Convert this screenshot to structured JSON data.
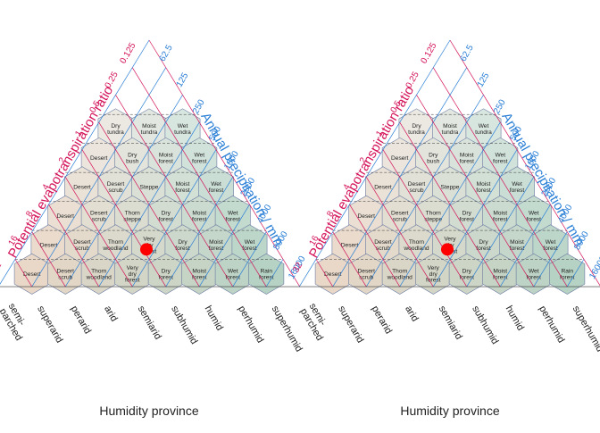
{
  "colors": {
    "pet_axis": "#d4145a",
    "precip_axis": "#2a7fd6",
    "cell_border": "#6a7aa0",
    "text": "#222222",
    "marker": "#ff0000",
    "cell_warm": "#e9d8c8",
    "cell_cool": "#eef4f3",
    "cell_wet": "#b6d2c4"
  },
  "panels": [
    {
      "pet_axis_title": "Potential evapotranspiration ratio",
      "precip_axis_title": "Annual precipitation / mm",
      "humidity_axis_title": "Humidity province",
      "pet_ticks": [
        "0.125",
        "0.25",
        "0.5",
        "1",
        "2",
        "4",
        "8",
        "16",
        "32"
      ],
      "precip_ticks": [
        "62.5",
        "125",
        "250",
        "500",
        "1000",
        "2000",
        "4000",
        "8000",
        "16000"
      ],
      "humidity_ticks": [
        "semi-\nparched",
        "superarid",
        "perarid",
        "arid",
        "semiarid",
        "subhumid",
        "humid",
        "perhumid",
        "superhumid"
      ],
      "marker_visible": true,
      "rows": [
        [
          {
            "label": "Dry\ntundra"
          },
          {
            "label": "Moist\ntundra"
          },
          {
            "label": "Wet\ntundra"
          }
        ],
        [
          {
            "label": "Desert"
          },
          {
            "label": "Dry\nbush"
          },
          {
            "label": "Moist\nforest"
          },
          {
            "label": "Wet\nforest"
          }
        ],
        [
          {
            "label": "Desert"
          },
          {
            "label": "Desert\nscrub"
          },
          {
            "label": "Steppe"
          },
          {
            "label": "Moist\nforest"
          },
          {
            "label": "Wet\nforest"
          }
        ],
        [
          {
            "label": "Desert"
          },
          {
            "label": "Desert\nscrub"
          },
          {
            "label": "Thorn\nsteppe"
          },
          {
            "label": "Dry\nforest"
          },
          {
            "label": "Moist\nforest"
          },
          {
            "label": "Wet\nforest"
          }
        ],
        [
          {
            "label": "Desert"
          },
          {
            "label": "Desert\nscrub"
          },
          {
            "label": "Thorn\nwoodland"
          },
          {
            "label": "Very\ndry\nforest"
          },
          {
            "label": "Dry\nforest"
          },
          {
            "label": "Moist\nforest"
          },
          {
            "label": "Wet\nforest"
          }
        ],
        [
          {
            "label": "Desert"
          },
          {
            "label": "Desert\nscrub"
          },
          {
            "label": "Thorn\nwoodland"
          },
          {
            "label": "Very\ndry\nforest"
          },
          {
            "label": "Dry\nforest"
          },
          {
            "label": "Moist\nforest"
          },
          {
            "label": "Wet\nforest"
          },
          {
            "label": "Rain\nforest"
          }
        ]
      ]
    },
    {
      "pet_axis_title": "Potential evapotranspiration ratio",
      "precip_axis_title": "Annual precipitation / mm",
      "humidity_axis_title": "Humidity province",
      "pet_ticks": [
        "0.125",
        "0.25",
        "0.5",
        "1",
        "2",
        "4",
        "8",
        "16",
        "32"
      ],
      "precip_ticks": [
        "62.5",
        "125",
        "250",
        "500",
        "1000",
        "2000",
        "4000",
        "8000",
        "16000"
      ],
      "humidity_ticks": [
        "semi-\nparched",
        "superarid",
        "perarid",
        "arid",
        "semiarid",
        "subhumid",
        "humid",
        "perhumid",
        "superhumid"
      ],
      "marker_visible": true,
      "rows": [
        [
          {
            "label": "Dry\ntundra"
          },
          {
            "label": "Moist\ntundra"
          },
          {
            "label": "Wet\ntundra"
          }
        ],
        [
          {
            "label": "Desert"
          },
          {
            "label": "Dry\nbush"
          },
          {
            "label": "Moist\nforest"
          },
          {
            "label": "Wet\nforest"
          }
        ],
        [
          {
            "label": "Desert"
          },
          {
            "label": "Desert\nscrub"
          },
          {
            "label": "Steppe"
          },
          {
            "label": "Moist\nforest"
          },
          {
            "label": "Wet\nforest"
          }
        ],
        [
          {
            "label": "Desert"
          },
          {
            "label": "Desert\nscrub"
          },
          {
            "label": "Thorn\nsteppe"
          },
          {
            "label": "Dry\nforest"
          },
          {
            "label": "Moist\nforest"
          },
          {
            "label": "Wet\nforest"
          }
        ],
        [
          {
            "label": "Desert"
          },
          {
            "label": "Desert\nscrub"
          },
          {
            "label": "Thorn\nwoodland"
          },
          {
            "label": "Very\ndry\nforest"
          },
          {
            "label": "Dry\nforest"
          },
          {
            "label": "Moist\nforest"
          },
          {
            "label": "Wet\nforest"
          }
        ],
        [
          {
            "label": "Desert"
          },
          {
            "label": "Desert\nscrub"
          },
          {
            "label": "Thorn\nwoodland"
          },
          {
            "label": "Very\ndry\nforest"
          },
          {
            "label": "Dry\nforest"
          },
          {
            "label": "Moist\nforest"
          },
          {
            "label": "Wet\nforest"
          },
          {
            "label": "Rain\nforest"
          }
        ]
      ]
    }
  ]
}
